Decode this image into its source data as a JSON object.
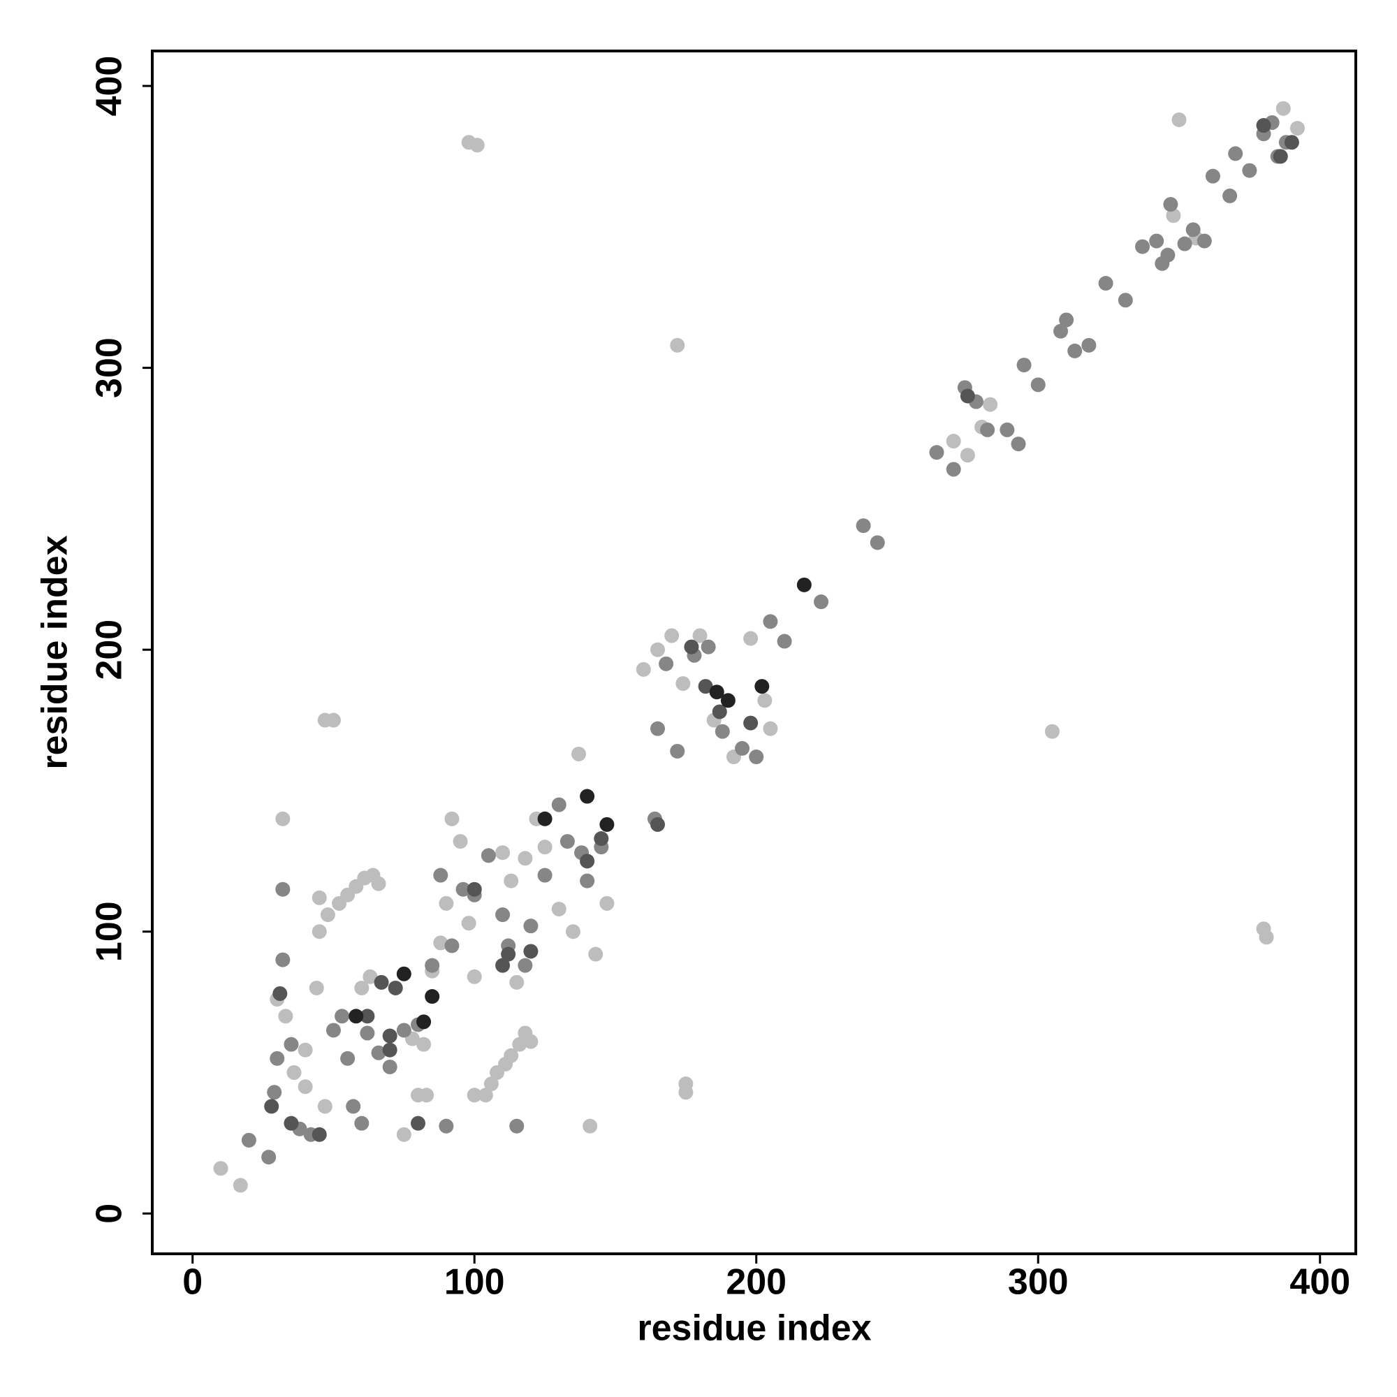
{
  "chart_data": {
    "type": "scatter",
    "xlabel": "residue index",
    "ylabel": "residue index",
    "xlim": [
      -14.3,
      412.7
    ],
    "ylim": [
      -14.3,
      412.4
    ],
    "xticks": [
      0,
      100,
      200,
      300,
      400
    ],
    "yticks": [
      0,
      100,
      200,
      300,
      400
    ],
    "series": [
      {
        "color": "#bdbdbd",
        "x": [
          10,
          17,
          30,
          32,
          33,
          36,
          40,
          45,
          47,
          50,
          45,
          48,
          52,
          55,
          58,
          61,
          64,
          66,
          40,
          47,
          44,
          60,
          63,
          75,
          78,
          80,
          83,
          82,
          85,
          88,
          90,
          92,
          95,
          98,
          100,
          98,
          101,
          100,
          104,
          106,
          108,
          111,
          113,
          116,
          118,
          120,
          115,
          110,
          113,
          118,
          122,
          125,
          130,
          135,
          137,
          141,
          143,
          147,
          160,
          165,
          170,
          174,
          175,
          175,
          172,
          180,
          185,
          192,
          198,
          203,
          205,
          305,
          270,
          275,
          283,
          280,
          348,
          350,
          356,
          387,
          392,
          380,
          381
        ],
        "values": [
          16,
          10,
          76,
          140,
          70,
          50,
          58,
          100,
          175,
          175,
          112,
          106,
          110,
          113,
          116,
          119,
          120,
          117,
          45,
          38,
          80,
          80,
          84,
          28,
          62,
          42,
          42,
          60,
          86,
          96,
          110,
          140,
          132,
          103,
          84,
          380,
          379,
          42,
          42,
          46,
          50,
          53,
          56,
          60,
          64,
          61,
          82,
          128,
          118,
          126,
          140,
          130,
          108,
          100,
          163,
          31,
          92,
          110,
          193,
          200,
          205,
          188,
          46,
          43,
          308,
          205,
          175,
          162,
          204,
          182,
          172,
          171,
          274,
          269,
          287,
          279,
          354,
          388,
          346,
          392,
          385,
          101,
          98
        ]
      },
      {
        "color": "#868686",
        "x": [
          20,
          27,
          29,
          30,
          32,
          32,
          35,
          38,
          42,
          50,
          53,
          55,
          57,
          60,
          62,
          66,
          70,
          75,
          80,
          85,
          88,
          90,
          92,
          96,
          100,
          105,
          110,
          112,
          115,
          118,
          120,
          125,
          130,
          133,
          138,
          140,
          145,
          164,
          165,
          168,
          172,
          178,
          183,
          188,
          195,
          200,
          205,
          210,
          223,
          238,
          243,
          264,
          270,
          274,
          278,
          282,
          289,
          293,
          295,
          300,
          308,
          310,
          313,
          318,
          324,
          331,
          337,
          342,
          344,
          346,
          347,
          352,
          355,
          359,
          362,
          368,
          370,
          375,
          380,
          383,
          385,
          388
        ],
        "values": [
          26,
          20,
          43,
          55,
          115,
          90,
          60,
          30,
          28,
          65,
          70,
          55,
          38,
          32,
          64,
          57,
          52,
          65,
          67,
          88,
          120,
          31,
          95,
          115,
          113,
          127,
          106,
          95,
          31,
          88,
          102,
          120,
          145,
          132,
          128,
          118,
          130,
          140,
          172,
          195,
          164,
          198,
          201,
          171,
          165,
          162,
          210,
          203,
          217,
          244,
          238,
          270,
          264,
          293,
          288,
          278,
          278,
          273,
          301,
          294,
          313,
          317,
          306,
          308,
          330,
          324,
          343,
          345,
          337,
          340,
          358,
          344,
          349,
          345,
          368,
          361,
          376,
          370,
          383,
          387,
          375,
          380
        ]
      },
      {
        "color": "#555555",
        "x": [
          28,
          31,
          35,
          45,
          62,
          67,
          70,
          70,
          72,
          80,
          100,
          110,
          112,
          120,
          140,
          145,
          165,
          177,
          182,
          198,
          187,
          275,
          380,
          386,
          390
        ],
        "values": [
          38,
          78,
          32,
          28,
          70,
          82,
          58,
          63,
          80,
          32,
          115,
          88,
          92,
          93,
          125,
          133,
          138,
          201,
          187,
          174,
          178,
          290,
          386,
          375,
          380
        ]
      },
      {
        "color": "#222222",
        "x": [
          58,
          75,
          82,
          85,
          140,
          147,
          186,
          190,
          202,
          125,
          217
        ],
        "values": [
          70,
          85,
          68,
          77,
          148,
          138,
          185,
          182,
          187,
          140,
          223
        ]
      }
    ]
  }
}
